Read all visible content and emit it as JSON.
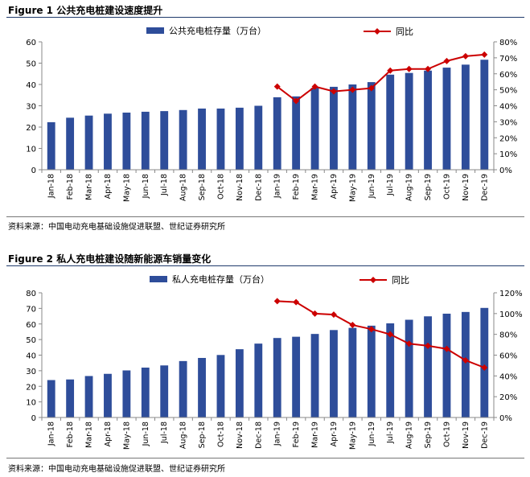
{
  "figure1": {
    "title": "Figure 1  公共充电桩建设速度提升",
    "source": "资料来源：中国电动充电基础设施促进联盟、世纪证券研究所"
  },
  "figure2": {
    "title": "Figure 2  私人充电桩建设随新能源车销量变化",
    "source": "资料来源：中国电动充电基础设施促进联盟、世纪证券研究所"
  },
  "chart_data": [
    {
      "type": "bar",
      "title": "",
      "categories": [
        "Jan-18",
        "Feb-18",
        "Mar-18",
        "Apr-18",
        "May-18",
        "Jun-18",
        "Jul-18",
        "Aug-18",
        "Sep-18",
        "Oct-18",
        "Nov-18",
        "Dec-18",
        "Jan-19",
        "Feb-19",
        "Mar-19",
        "Apr-19",
        "May-19",
        "Jun-19",
        "Jul-19",
        "Aug-19",
        "Sep-19",
        "Oct-19",
        "Nov-19",
        "Dec-19"
      ],
      "series": [
        {
          "name": "公共充电桩存量（万台）",
          "type": "bar",
          "axis": "left",
          "values": [
            22.3,
            24.4,
            25.4,
            26.3,
            26.8,
            27.2,
            27.5,
            28.0,
            28.7,
            28.7,
            29.1,
            30.0,
            34.0,
            34.4,
            38.4,
            38.9,
            40.0,
            41.1,
            44.6,
            45.4,
            46.5,
            47.9,
            49.3,
            51.6
          ]
        },
        {
          "name": "同比",
          "type": "line",
          "axis": "right",
          "values": [
            null,
            null,
            null,
            null,
            null,
            null,
            null,
            null,
            null,
            null,
            null,
            null,
            0.52,
            0.43,
            0.52,
            0.49,
            0.5,
            0.51,
            0.62,
            0.63,
            0.63,
            0.68,
            0.71,
            0.72
          ]
        }
      ],
      "ylim": [
        0,
        60
      ],
      "yticks": [
        "0",
        "10",
        "20",
        "30",
        "40",
        "50",
        "60"
      ],
      "y2lim": [
        0,
        0.8
      ],
      "y2ticks": [
        "0%",
        "10%",
        "20%",
        "30%",
        "40%",
        "50%",
        "60%",
        "70%",
        "80%"
      ],
      "grid": false,
      "legend": "top",
      "colors": {
        "bar": "#2e4d9a",
        "line": "#cc0000"
      }
    },
    {
      "type": "bar",
      "title": "",
      "categories": [
        "Jan-18",
        "Feb-18",
        "Mar-18",
        "Apr-18",
        "May-18",
        "Jun-18",
        "Jul-18",
        "Aug-18",
        "Sep-18",
        "Oct-18",
        "Nov-18",
        "Dec-18",
        "Jan-19",
        "Feb-19",
        "Mar-19",
        "Apr-19",
        "May-19",
        "Jun-19",
        "Jul-19",
        "Aug-19",
        "Sep-19",
        "Oct-19",
        "Nov-19",
        "Dec-19"
      ],
      "series": [
        {
          "name": "私人充电桩存量（万台）",
          "type": "bar",
          "axis": "left",
          "values": [
            24.0,
            24.4,
            26.6,
            28.0,
            30.2,
            32.0,
            33.4,
            36.2,
            38.2,
            40.1,
            43.8,
            47.4,
            51.0,
            51.8,
            53.6,
            56.1,
            57.5,
            58.9,
            60.4,
            62.7,
            64.9,
            66.6,
            67.7,
            70.3
          ]
        },
        {
          "name": "同比",
          "type": "line",
          "axis": "right",
          "values": [
            null,
            null,
            null,
            null,
            null,
            null,
            null,
            null,
            null,
            null,
            null,
            null,
            1.12,
            1.11,
            1.0,
            0.99,
            0.89,
            0.85,
            0.8,
            0.71,
            0.69,
            0.66,
            0.55,
            0.48
          ]
        }
      ],
      "ylim": [
        0,
        80
      ],
      "yticks": [
        "0",
        "10",
        "20",
        "30",
        "40",
        "50",
        "60",
        "70",
        "80"
      ],
      "y2lim": [
        0,
        1.2
      ],
      "y2ticks": [
        "0%",
        "20%",
        "40%",
        "60%",
        "80%",
        "100%",
        "120%"
      ],
      "grid": false,
      "legend": "top",
      "colors": {
        "bar": "#2e4d9a",
        "line": "#cc0000"
      }
    }
  ]
}
